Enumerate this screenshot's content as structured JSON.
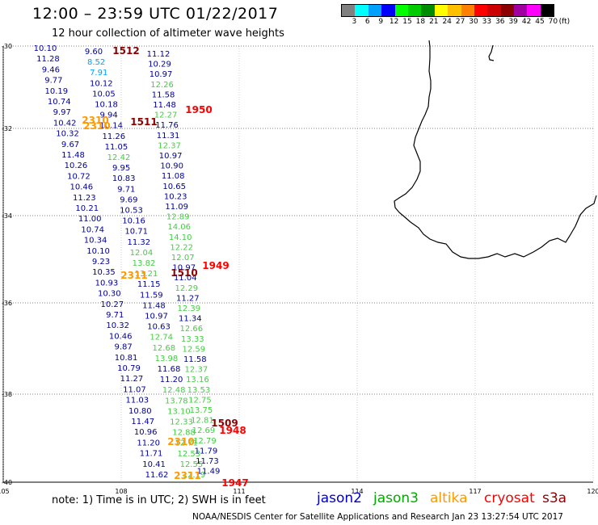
{
  "title": "12:00 – 23:59 UTC 01/22/2017",
  "subtitle": "12 hour collection of altimeter wave heights",
  "legend": {
    "unit": "(ft)",
    "bins": [
      {
        "label": "3",
        "color": "#808080"
      },
      {
        "label": "6",
        "color": "#00ffff"
      },
      {
        "label": "9",
        "color": "#00a0ff"
      },
      {
        "label": "12",
        "color": "#0000ff"
      },
      {
        "label": "15",
        "color": "#00ff00"
      },
      {
        "label": "18",
        "color": "#00cc00"
      },
      {
        "label": "21",
        "color": "#008c00"
      },
      {
        "label": "24",
        "color": "#ffff00"
      },
      {
        "label": "27",
        "color": "#ffc000"
      },
      {
        "label": "30",
        "color": "#ff8000"
      },
      {
        "label": "33",
        "color": "#ff0000"
      },
      {
        "label": "36",
        "color": "#cc0000"
      },
      {
        "label": "39",
        "color": "#8c0000"
      },
      {
        "label": "42",
        "color": "#a000a0"
      },
      {
        "label": "45",
        "color": "#ff00ff"
      },
      {
        "label": "70",
        "color": "#000000"
      }
    ]
  },
  "axes": {
    "lon_ticks": [
      "105",
      "108",
      "111",
      "114",
      "117",
      "120"
    ],
    "lat_ticks": [
      "-30",
      "-32",
      "-34",
      "-36",
      "-38",
      "-40"
    ]
  },
  "note": "note: 1) Time is in UTC; 2) SWH is in feet",
  "satellites": [
    {
      "name": "jason2",
      "color": "#0000cc"
    },
    {
      "name": "jason3",
      "color": "#00aa00"
    },
    {
      "name": "altika",
      "color": "#ff9900"
    },
    {
      "name": "cryosat",
      "color": "#ff0000"
    },
    {
      "name": "s3a",
      "color": "#8c0000"
    }
  ],
  "credit": "NOAA/NESDIS Center for Satellite Applications and Research    Jan 23 13:27:54 UTC 2017",
  "tracks": [
    {
      "id": "jason2-a",
      "color": "#00009c",
      "values": [
        "10.10",
        "11.28",
        "9.46",
        "9.77",
        "10.19",
        "10.74",
        "9.97",
        "10.42",
        "10.32",
        "9.67",
        "11.48",
        "10.26",
        "10.72",
        "10.46",
        "11.23",
        "10.21",
        "11.00",
        "10.74",
        "10.34",
        "10.10",
        "9.23",
        "10.35",
        "10.93",
        "10.30",
        "10.27",
        "9.71",
        "10.32",
        "10.46",
        "9.87",
        "10.81",
        "10.79",
        "11.27",
        "11.07",
        "11.03",
        "10.80",
        "11.47",
        "10.96",
        "11.20",
        "11.71",
        "10.41",
        "11.62"
      ]
    },
    {
      "id": "jason2-b",
      "color": "#00009c",
      "values": [
        "9.60",
        "8.52",
        "7.91",
        "10.12",
        "10.05",
        "10.18",
        "9.94",
        "10.14",
        "11.26",
        "11.05",
        "12.42",
        "9.95",
        "10.83",
        "9.71",
        "9.69",
        "10.53",
        "10.16",
        "10.71",
        "11.32",
        "12.04",
        "13.82",
        "13.21",
        "11.15",
        "11.59",
        "11.48",
        "10.97",
        "10.63",
        "12.74",
        "12.68",
        "13.98",
        "11.68",
        "11.20",
        "12.48",
        "13.78",
        "13.10",
        "12.33",
        "12.88",
        "12.71",
        "12.53",
        "12.55",
        "12.19"
      ]
    },
    {
      "id": "jason2-c",
      "color": "#00009c",
      "values": [
        "11.12",
        "10.29",
        "10.97",
        "12.26",
        "11.58",
        "11.48",
        "12.27",
        "11.76",
        "11.31",
        "12.37",
        "10.97",
        "10.90",
        "11.08",
        "10.65",
        "10.23",
        "11.09",
        "12.89",
        "14.06",
        "14.10",
        "12.22",
        "12.07",
        "10.97",
        "11.04",
        "12.29",
        "11.27",
        "12.39",
        "11.34",
        "12.66",
        "13.33",
        "12.59",
        "11.58",
        "12.37",
        "13.16",
        "13.53",
        "12.75",
        "13.75",
        "12.81",
        "12.69",
        "12.79",
        "11.79",
        "11.73",
        "11.49"
      ]
    }
  ],
  "passes": [
    {
      "id": "1512",
      "color": "#8c0000"
    },
    {
      "id": "1950",
      "color": "#ff0000"
    },
    {
      "id": "2310a",
      "label": "2310",
      "color": "#ff9900"
    },
    {
      "id": "2310b",
      "label": "2310",
      "color": "#ff9900"
    },
    {
      "id": "1511",
      "color": "#8c0000"
    },
    {
      "id": "1949",
      "color": "#ff0000"
    },
    {
      "id": "1510",
      "color": "#8c0000"
    },
    {
      "id": "2311",
      "label": "2311",
      "color": "#ff9900"
    },
    {
      "id": "1509",
      "color": "#8c0000"
    },
    {
      "id": "1948",
      "color": "#ff0000"
    },
    {
      "id": "2310c",
      "label": "2310",
      "color": "#ff9900"
    },
    {
      "id": "2311b",
      "label": "2311",
      "color": "#ff9900"
    },
    {
      "id": "1947",
      "color": "#ff0000"
    }
  ]
}
